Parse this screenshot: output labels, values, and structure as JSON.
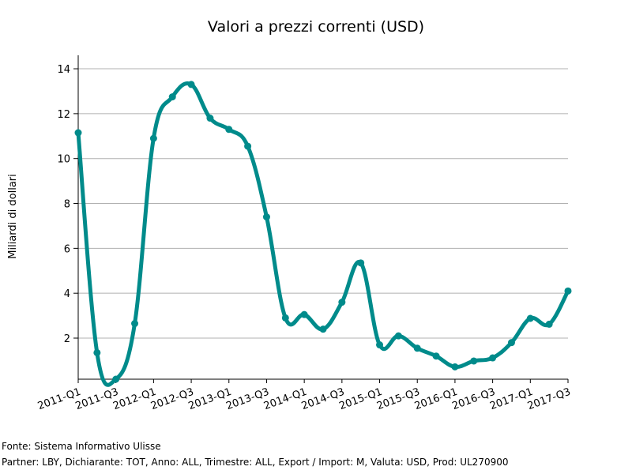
{
  "chart_data": {
    "type": "line",
    "title": "Valori a prezzi correnti (USD)",
    "ylabel": "Miliardi di dollari",
    "xlabel": "",
    "ylim": [
      0.17,
      14.6
    ],
    "yticks": [
      2,
      4,
      6,
      8,
      10,
      12,
      14
    ],
    "grid": "horizontal",
    "line_color": "#008b8b",
    "x": [
      "2011-Q1",
      "2011-Q2",
      "2011-Q3",
      "2011-Q4",
      "2012-Q1",
      "2012-Q2",
      "2012-Q3",
      "2012-Q4",
      "2013-Q1",
      "2013-Q2",
      "2013-Q3",
      "2013-Q4",
      "2014-Q1",
      "2014-Q2",
      "2014-Q3",
      "2014-Q4",
      "2015-Q1",
      "2015-Q2",
      "2015-Q3",
      "2015-Q4",
      "2016-Q1",
      "2016-Q2",
      "2016-Q3",
      "2016-Q4",
      "2017-Q1",
      "2017-Q2",
      "2017-Q3"
    ],
    "x_tick_labels": [
      "2011-Q1",
      "2011-Q3",
      "2012-Q1",
      "2012-Q3",
      "2013-Q1",
      "2013-Q3",
      "2014-Q1",
      "2014-Q3",
      "2015-Q1",
      "2015-Q3",
      "2016-Q1",
      "2016-Q3",
      "2017-Q1",
      "2017-Q3"
    ],
    "series": [
      {
        "values": [
          11.15,
          1.35,
          0.17,
          2.65,
          10.9,
          12.75,
          13.3,
          11.8,
          11.3,
          10.55,
          7.4,
          2.9,
          3.05,
          2.4,
          3.6,
          5.35,
          1.7,
          2.1,
          1.55,
          1.2,
          0.72,
          0.98,
          1.12,
          1.8,
          2.88,
          2.62,
          4.1
        ]
      }
    ]
  },
  "footer": {
    "source": "Fonte: Sistema Informativo Ulisse",
    "details": "Partner: LBY, Dichiarante: TOT, Anno: ALL, Trimestre: ALL, Export / Import: M, Valuta: USD, Prod: UL270900"
  }
}
